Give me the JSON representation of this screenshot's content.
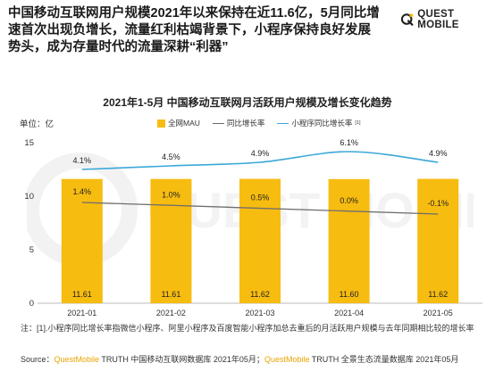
{
  "headline": "中国移动互联网用户规模2021年以来保持在近11.6亿，5月同比增速首次出现负增长，流量红利枯竭背景下，小程序保持良好发展势头，成为存量时代的流量深耕“利器”",
  "brand": {
    "name": "QUEST MOBILE",
    "logo_icon": "q-mark-icon"
  },
  "watermark": {
    "text": "QUEST MOBILE"
  },
  "colors": {
    "bar": "#F7BC10",
    "yoy_line": "#6E6E6E",
    "mini_line": "#3AA8D8",
    "accent": "#E8A400"
  },
  "chart_data": {
    "type": "bar",
    "title": "2021年1-5月 中国移动互联网月活跃用户规模及增长变化趋势",
    "unit_label": "单位：亿",
    "categories": [
      "2021-01",
      "2021-02",
      "2021-03",
      "2021-04",
      "2021-05"
    ],
    "ylim": [
      0,
      15
    ],
    "yticks": [
      "0",
      "5",
      "10",
      "15"
    ],
    "legend_placement": "top",
    "series": [
      {
        "name": "全网MAU",
        "kind": "bar",
        "values": [
          11.61,
          11.61,
          11.62,
          11.6,
          11.62
        ],
        "labels": [
          "11.61",
          "11.61",
          "11.62",
          "11.60",
          "11.62"
        ]
      },
      {
        "name": "同比增长率",
        "kind": "line",
        "values": [
          1.4,
          1.0,
          0.5,
          0.0,
          -0.1
        ],
        "labels": [
          "1.4%",
          "1.0%",
          "0.5%",
          "0.0%",
          "-0.1%"
        ]
      },
      {
        "name": "小程序同比增长率",
        "note_mark": "[1]",
        "kind": "line",
        "values": [
          4.1,
          4.5,
          4.9,
          6.1,
          4.9
        ],
        "labels": [
          "4.1%",
          "4.5%",
          "4.9%",
          "6.1%",
          "4.9%"
        ]
      }
    ]
  },
  "note": "注：[1].小程序同比增长率指微信小程序、阿里小程序及百度智能小程序加总去重后的月活跃用户规模与去年同期相比较的增长率",
  "source": {
    "prefix": "Source：",
    "brand1": "QuestMobile",
    "text1": " TRUTH 中国移动互联网数据库 2021年05月；",
    "brand2": "QuestMobile",
    "text2": " TRUTH 全景生态流量数据库 2021年05月"
  }
}
